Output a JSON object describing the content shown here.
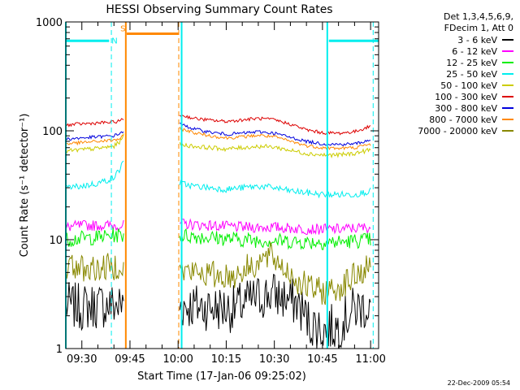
{
  "chart_data": {
    "type": "line",
    "title": "HESSI Observing Summary Count Rates",
    "xlabel": "Start Time (17-Jan-06 09:25:02)",
    "ylabel": "Count Rate (s⁻¹ detector⁻¹)",
    "x_tick_labels": [
      "09:30",
      "09:45",
      "10:00",
      "10:15",
      "10:30",
      "10:45",
      "11:00"
    ],
    "x_tick_minutes": [
      5,
      20,
      35,
      50,
      65,
      80,
      95
    ],
    "xlim_minutes": [
      0,
      97.5
    ],
    "yscale": "log",
    "ylim": [
      1,
      1000
    ],
    "y_tick_labels": [
      "1",
      "10",
      "100",
      "1000"
    ],
    "legend": {
      "placement": "right",
      "header": [
        "Det 1,3,4,5,6,9,",
        "FDecim 1, Att 0"
      ],
      "entries": [
        {
          "label": "3 - 6 keV",
          "color": "#000000"
        },
        {
          "label": "6 - 12 keV",
          "color": "#ff00ff"
        },
        {
          "label": "12 - 25 keV",
          "color": "#00ee00"
        },
        {
          "label": "25 - 50 keV",
          "color": "#00eeee"
        },
        {
          "label": "50 - 100 keV",
          "color": "#cccc00"
        },
        {
          "label": "100 - 300 keV",
          "color": "#dd0000"
        },
        {
          "label": "300 - 800 keV",
          "color": "#0000dd"
        },
        {
          "label": "800 - 7000 keV",
          "color": "#ff8800"
        },
        {
          "label": "7000 - 20000 keV",
          "color": "#888800"
        }
      ]
    },
    "series": [
      {
        "name": "3 - 6 keV",
        "color": "#000000",
        "noise": 0.22,
        "segments": [
          {
            "x": [
              0,
              5,
              10,
              15,
              18
            ],
            "y": [
              2.5,
              2.4,
              2.5,
              2.5,
              2.5
            ]
          },
          {
            "x": [
              35.5,
              45,
              52,
              58,
              64,
              72,
              76,
              80,
              85,
              90,
              95
            ],
            "y": [
              2.5,
              2.4,
              2.3,
              2.8,
              3.2,
              2.6,
              1.7,
              1.5,
              1.6,
              2.3,
              2.5
            ]
          }
        ]
      },
      {
        "name": "6 - 12 keV",
        "color": "#ff00ff",
        "noise": 0.05,
        "segments": [
          {
            "x": [
              0,
              5,
              10,
              15,
              18
            ],
            "y": [
              13,
              13.5,
              13.5,
              13.5,
              13.5
            ]
          },
          {
            "x": [
              35.5,
              45,
              55,
              65,
              75,
              85,
              95
            ],
            "y": [
              14,
              13.5,
              13,
              13,
              12.5,
              12.5,
              13
            ]
          }
        ]
      },
      {
        "name": "12 - 25 keV",
        "color": "#00ee00",
        "noise": 0.07,
        "segments": [
          {
            "x": [
              0,
              5,
              10,
              15,
              18
            ],
            "y": [
              10,
              10.3,
              10.5,
              11,
              11
            ]
          },
          {
            "x": [
              35.5,
              45,
              55,
              65,
              75,
              85,
              95
            ],
            "y": [
              11,
              10.5,
              10,
              9.8,
              9.5,
              9.5,
              10
            ]
          }
        ]
      },
      {
        "name": "25 - 50 keV",
        "color": "#00eeee",
        "noise": 0.03,
        "segments": [
          {
            "x": [
              0,
              5,
              10,
              15,
              17,
              18
            ],
            "y": [
              30,
              31,
              33,
              37,
              45,
              55
            ]
          },
          {
            "x": [
              35.5,
              40,
              45,
              50,
              55,
              60,
              65,
              70,
              75,
              80,
              85,
              90,
              95
            ],
            "y": [
              33,
              31,
              30,
              29,
              30,
              31,
              30,
              28,
              27,
              26,
              26,
              26,
              28
            ]
          }
        ]
      },
      {
        "name": "50 - 100 keV",
        "color": "#cccc00",
        "noise": 0.02,
        "segments": [
          {
            "x": [
              0,
              5,
              10,
              15,
              17,
              18
            ],
            "y": [
              65,
              67,
              69,
              72,
              80,
              95
            ]
          },
          {
            "x": [
              35.5,
              40,
              45,
              50,
              55,
              60,
              65,
              70,
              75,
              80,
              85,
              90,
              95
            ],
            "y": [
              75,
              72,
              70,
              68,
              70,
              72,
              71,
              66,
              62,
              60,
              60,
              62,
              67
            ]
          }
        ]
      },
      {
        "name": "100 - 300 keV",
        "color": "#dd0000",
        "noise": 0.015,
        "segments": [
          {
            "x": [
              0,
              5,
              10,
              15,
              17,
              18
            ],
            "y": [
              113,
              116,
              118,
              120,
              124,
              128
            ]
          },
          {
            "x": [
              35.5,
              40,
              45,
              50,
              55,
              60,
              65,
              70,
              75,
              80,
              85,
              90,
              95
            ],
            "y": [
              140,
              130,
              125,
              122,
              126,
              130,
              126,
              115,
              102,
              96,
              95,
              98,
              110
            ]
          }
        ]
      },
      {
        "name": "300 - 800 keV",
        "color": "#0000dd",
        "noise": 0.015,
        "segments": [
          {
            "x": [
              0,
              5,
              10,
              15,
              17,
              18
            ],
            "y": [
              84,
              86,
              88,
              90,
              95,
              100
            ]
          },
          {
            "x": [
              35.5,
              40,
              45,
              50,
              55,
              60,
              65,
              70,
              75,
              80,
              85,
              90,
              95
            ],
            "y": [
              115,
              104,
              97,
              93,
              95,
              98,
              95,
              87,
              80,
              76,
              75,
              76,
              82
            ]
          }
        ]
      },
      {
        "name": "800 - 7000 keV",
        "color": "#ff8800",
        "noise": 0.015,
        "segments": [
          {
            "x": [
              0,
              5,
              10,
              15,
              17,
              18
            ],
            "y": [
              76,
              78,
              80,
              82,
              85,
              90
            ]
          },
          {
            "x": [
              35.5,
              40,
              45,
              50,
              55,
              60,
              65,
              70,
              75,
              80,
              85,
              90,
              95
            ],
            "y": [
              105,
              96,
              90,
              86,
              88,
              91,
              88,
              80,
              73,
              70,
              69,
              70,
              75
            ]
          }
        ]
      },
      {
        "name": "7000 - 20000 keV",
        "color": "#888800",
        "noise": 0.13,
        "segments": [
          {
            "x": [
              0,
              5,
              10,
              15,
              18
            ],
            "y": [
              5.8,
              5.5,
              5.4,
              5.7,
              6
            ]
          },
          {
            "x": [
              35.5,
              45,
              52,
              58,
              64,
              68,
              72,
              76,
              80,
              85,
              90,
              95
            ],
            "y": [
              5.2,
              4.8,
              4.6,
              5.8,
              7,
              5.5,
              4.2,
              3.6,
              3.3,
              3.6,
              4.6,
              5.6
            ]
          }
        ]
      }
    ],
    "vertical_markers": [
      {
        "x": 0,
        "color": "#00eeee",
        "style": "solid"
      },
      {
        "x": 14.2,
        "color": "#00eeee",
        "style": "dashed"
      },
      {
        "x": 36.1,
        "color": "#00eeee",
        "style": "solid"
      },
      {
        "x": 81.5,
        "color": "#00eeee",
        "style": "solid"
      },
      {
        "x": 95.8,
        "color": "#00eeee",
        "style": "dashed"
      },
      {
        "x": 18.7,
        "color": "#ff8800",
        "style": "solid"
      },
      {
        "x": 35.2,
        "color": "#ff8800",
        "style": "dashed"
      }
    ],
    "flag_bars": [
      {
        "x": [
          0,
          13.5
        ],
        "y": 670,
        "color": "#00eeee"
      },
      {
        "x": [
          82,
          97.5
        ],
        "y": 670,
        "color": "#00eeee"
      },
      {
        "x": [
          19,
          35.2
        ],
        "y": 780,
        "color": "#ff8800"
      }
    ],
    "annotations": [
      {
        "text": "N",
        "x": 15.2,
        "y": 680,
        "color": "#00eeee"
      },
      {
        "text": "S",
        "x": 17.8,
        "y": 880,
        "color": "#ff8800"
      }
    ]
  },
  "footer": {
    "timestamp": "22-Dec-2009 05:54"
  }
}
